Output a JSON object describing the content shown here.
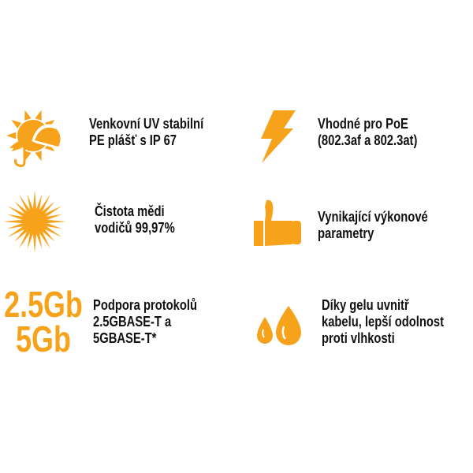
{
  "features": [
    {
      "lines": [
        "Venkovní UV stabilní",
        "PE plášť s IP 67"
      ]
    },
    {
      "lines": [
        "Vhodné pro PoE",
        "(802.3af a 802.3at)"
      ]
    },
    {
      "lines": [
        "Čistota mědi",
        "vodičů 99,97%"
      ]
    },
    {
      "lines": [
        "Vynikající výkonové",
        "parametry"
      ]
    },
    {
      "icon_text": [
        "2.5Gb",
        "5Gb"
      ],
      "lines": [
        "Podpora protokolů",
        "2.5GBASE-T a",
        "5GBASE-T*"
      ]
    },
    {
      "lines": [
        "Díky gelu uvnitř",
        "kabelu, lepší odolnost",
        "proti vlhkosti"
      ]
    }
  ]
}
